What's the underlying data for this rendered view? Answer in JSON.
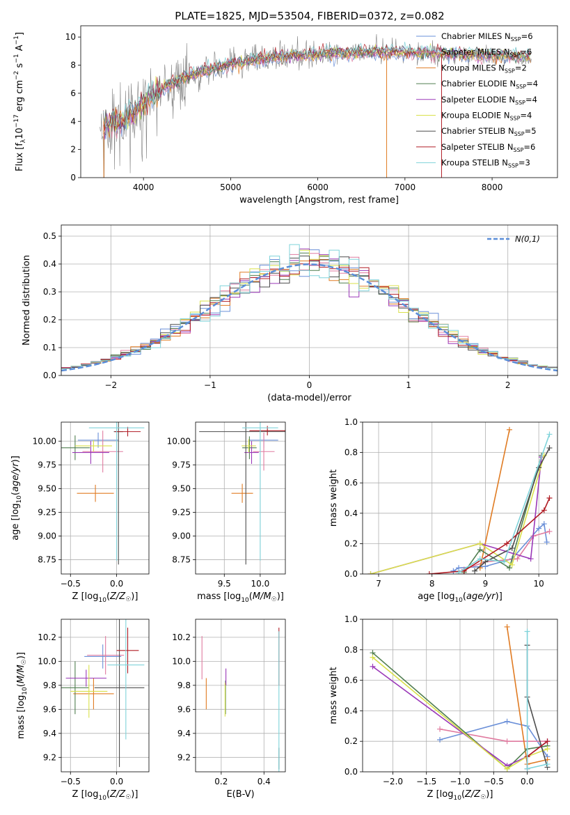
{
  "figure": {
    "title": "PLATE=1825, MJD=53504, FIBERID=0372, z=0.082"
  },
  "colors": {
    "data": "#808080",
    "Chabrier MILES": "#6a8fd8",
    "Salpeter MILES": "#e07a9f",
    "Kroupa MILES": "#e07b22",
    "Chabrier ELODIE": "#4f7d4f",
    "Salpeter ELODIE": "#9a38b8",
    "Kroupa ELODIE": "#d9e04a",
    "Chabrier STELIB": "#4d4d4d",
    "Salpeter STELIB": "#b01c24",
    "Kroupa STELIB": "#7fd3da",
    "gaussian": "#5b8ed8"
  },
  "chart_data": [
    {
      "id": "spectrum",
      "type": "line",
      "title": "PLATE=1825, MJD=53504, FIBERID=0372, z=0.082",
      "xlabel": "wavelength [Angstrom, rest frame]",
      "ylabel": "Flux [f_λ 10^-17 erg cm^-2 s^-1 A^-1]",
      "xlim": [
        3280,
        8750
      ],
      "ylim": [
        0,
        10.8
      ],
      "xticks": [
        4000,
        5000,
        6000,
        7000,
        8000
      ],
      "yticks": [
        0,
        2,
        4,
        6,
        8,
        10
      ],
      "grid": false,
      "legend_position": "right",
      "continuum_x": [
        3500,
        3600,
        3700,
        3800,
        3900,
        4000,
        4100,
        4200,
        4300,
        4400,
        4500,
        4700,
        5000,
        5300,
        5600,
        6000,
        6500,
        7000,
        7500,
        8000,
        8400
      ],
      "continuum_y": [
        4.0,
        3.8,
        3.9,
        4.2,
        4.6,
        5.3,
        5.9,
        6.3,
        6.6,
        6.9,
        7.2,
        7.6,
        8.1,
        8.4,
        8.6,
        8.8,
        8.9,
        8.9,
        8.8,
        8.7,
        8.6
      ],
      "series": [
        {
          "name": "Chabrier MILES",
          "nssp": 6
        },
        {
          "name": "Salpeter MILES",
          "nssp": 6
        },
        {
          "name": "Kroupa MILES",
          "nssp": 2
        },
        {
          "name": "Chabrier ELODIE",
          "nssp": 4
        },
        {
          "name": "Salpeter ELODIE",
          "nssp": 4
        },
        {
          "name": "Kroupa ELODIE",
          "nssp": 4
        },
        {
          "name": "Chabrier STELIB",
          "nssp": 5
        },
        {
          "name": "Salpeter STELIB",
          "nssp": 6
        },
        {
          "name": "Kroupa STELIB",
          "nssp": 3
        }
      ]
    },
    {
      "id": "residuals",
      "type": "step",
      "xlabel": "(data-model)/error",
      "ylabel": "Normed distribution",
      "xlim": [
        -2.5,
        2.5
      ],
      "ylim": [
        0,
        0.54
      ],
      "xticks": [
        -2,
        -1,
        0,
        1,
        2
      ],
      "yticks": [
        0.0,
        0.1,
        0.2,
        0.3,
        0.4,
        0.5
      ],
      "grid": true,
      "legend_position": "top-right",
      "legend_label": "N(0,1)",
      "bin_width": 0.1
    },
    {
      "id": "age_vs_Z",
      "type": "errorbar",
      "xlabel": "Z [log10(Z/Z☉)]",
      "ylabel": "age  [log10(age/yr)]",
      "xlim": [
        -0.6,
        0.35
      ],
      "ylim": [
        8.6,
        10.2
      ],
      "xticks": [
        -0.5,
        0.0
      ],
      "yticks": [
        8.75,
        9.0,
        9.25,
        9.5,
        9.75,
        10.0
      ],
      "grid": true,
      "points": [
        {
          "series": "Chabrier MILES",
          "x": -0.2,
          "xerr": 0.22,
          "y": 10.01,
          "yerr": 0.08
        },
        {
          "series": "Salpeter MILES",
          "x": -0.15,
          "xerr": 0.22,
          "y": 9.89,
          "yerr": 0.22
        },
        {
          "series": "Kroupa MILES",
          "x": -0.23,
          "xerr": 0.2,
          "y": 9.45,
          "yerr": 0.09
        },
        {
          "series": "Chabrier ELODIE",
          "x": -0.45,
          "xerr": 0.16,
          "y": 9.93,
          "yerr": 0.13
        },
        {
          "series": "Salpeter ELODIE",
          "x": -0.28,
          "xerr": 0.2,
          "y": 9.88,
          "yerr": 0.12
        },
        {
          "series": "Kroupa ELODIE",
          "x": -0.25,
          "xerr": 0.2,
          "y": 9.95,
          "yerr": 0.06
        },
        {
          "series": "Chabrier STELIB",
          "x": 0.02,
          "xerr": 0.05,
          "y": 10.1,
          "yerr": 1.4
        },
        {
          "series": "Salpeter STELIB",
          "x": 0.12,
          "xerr": 0.14,
          "y": 10.1,
          "yerr": 0.05
        },
        {
          "series": "Kroupa STELIB",
          "x": 0.0,
          "xerr": 0.3,
          "y": 10.14,
          "yerr": 1.4
        }
      ]
    },
    {
      "id": "age_vs_mass",
      "type": "errorbar",
      "xlabel": "mass [log10(M/M☉)]",
      "ylabel": "",
      "xlim": [
        9.1,
        10.35
      ],
      "ylim": [
        8.6,
        10.2
      ],
      "xticks": [
        9.5,
        10.0
      ],
      "yticks": [
        8.75,
        9.0,
        9.25,
        9.5,
        9.75,
        10.0
      ],
      "grid": true,
      "points": [
        {
          "series": "Chabrier MILES",
          "x": 10.05,
          "xerr": 0.2,
          "y": 10.01,
          "yerr": 0.08
        },
        {
          "series": "Salpeter MILES",
          "x": 10.05,
          "xerr": 0.15,
          "y": 9.89,
          "yerr": 0.2
        },
        {
          "series": "Kroupa MILES",
          "x": 9.75,
          "xerr": 0.15,
          "y": 9.45,
          "yerr": 0.1
        },
        {
          "series": "Chabrier ELODIE",
          "x": 9.85,
          "xerr": 0.1,
          "y": 9.93,
          "yerr": 0.12
        },
        {
          "series": "Salpeter ELODIE",
          "x": 9.88,
          "xerr": 0.1,
          "y": 9.88,
          "yerr": 0.12
        },
        {
          "series": "Kroupa ELODIE",
          "x": 9.84,
          "xerr": 0.1,
          "y": 9.95,
          "yerr": 0.07
        },
        {
          "series": "Chabrier STELIB",
          "x": 9.8,
          "xerr": 0.65,
          "y": 10.1,
          "yerr": 1.4
        },
        {
          "series": "Salpeter STELIB",
          "x": 10.1,
          "xerr": 0.25,
          "y": 10.11,
          "yerr": 0.05
        },
        {
          "series": "Kroupa STELIB",
          "x": 10.0,
          "xerr": 0.25,
          "y": 10.14,
          "yerr": 1.4
        }
      ]
    },
    {
      "id": "mass_weight_vs_age",
      "type": "line",
      "xlabel": "age  [log10(age/yr)]",
      "ylabel": "mass weight",
      "xlim": [
        6.7,
        10.35
      ],
      "ylim": [
        0,
        1.0
      ],
      "xticks": [
        7,
        8,
        9,
        10
      ],
      "yticks": [
        0.0,
        0.2,
        0.4,
        0.6,
        0.8,
        1.0
      ],
      "grid": true,
      "series": [
        {
          "name": "Chabrier MILES",
          "x": [
            8.4,
            8.5,
            9.0,
            9.5,
            10.0,
            10.1,
            10.15
          ],
          "y": [
            0.02,
            0.04,
            0.05,
            0.1,
            0.3,
            0.33,
            0.21
          ]
        },
        {
          "name": "Salpeter MILES",
          "x": [
            8.6,
            9.0,
            9.6,
            9.9,
            10.2
          ],
          "y": [
            0.03,
            0.08,
            0.1,
            0.25,
            0.28
          ]
        },
        {
          "name": "Kroupa MILES",
          "x": [
            8.9,
            9.45
          ],
          "y": [
            0.04,
            0.95
          ]
        },
        {
          "name": "Chabrier ELODIE",
          "x": [
            8.6,
            8.9,
            9.45,
            10.05
          ],
          "y": [
            0.01,
            0.16,
            0.04,
            0.78
          ]
        },
        {
          "name": "Salpeter ELODIE",
          "x": [
            6.85,
            8.9,
            9.85,
            10.05
          ],
          "y": [
            0.0,
            0.2,
            0.1,
            0.77
          ]
        },
        {
          "name": "Kroupa ELODIE",
          "x": [
            6.85,
            8.9,
            9.5,
            10.1
          ],
          "y": [
            0.0,
            0.2,
            0.06,
            0.78
          ]
        },
        {
          "name": "Chabrier STELIB",
          "x": [
            8.8,
            9.0,
            9.5,
            10.0,
            10.2
          ],
          "y": [
            0.02,
            0.08,
            0.17,
            0.7,
            0.83
          ]
        },
        {
          "name": "Salpeter STELIB",
          "x": [
            7.95,
            8.6,
            9.4,
            10.1,
            10.2
          ],
          "y": [
            0.0,
            0.02,
            0.2,
            0.42,
            0.5
          ]
        },
        {
          "name": "Kroupa STELIB",
          "x": [
            8.5,
            8.9,
            9.35,
            10.2
          ],
          "y": [
            0.01,
            0.1,
            0.08,
            0.92
          ]
        }
      ]
    },
    {
      "id": "mass_vs_Z",
      "type": "errorbar",
      "xlabel": "Z [log10(Z/Z☉)]",
      "ylabel": "mass [log10(M/M☉)]",
      "xlim": [
        -0.6,
        0.35
      ],
      "ylim": [
        9.08,
        10.35
      ],
      "xticks": [
        -0.5,
        0.0
      ],
      "yticks": [
        9.2,
        9.4,
        9.6,
        9.8,
        10.0,
        10.2
      ],
      "grid": true,
      "points": [
        {
          "series": "Chabrier MILES",
          "x": -0.15,
          "xerr": 0.2,
          "y": 10.04,
          "yerr": 0.1
        },
        {
          "series": "Salpeter MILES",
          "x": -0.12,
          "xerr": 0.2,
          "y": 10.05,
          "yerr": 0.16
        },
        {
          "series": "Kroupa MILES",
          "x": -0.25,
          "xerr": 0.22,
          "y": 9.73,
          "yerr": 0.13
        },
        {
          "series": "Chabrier ELODIE",
          "x": -0.45,
          "xerr": 0.15,
          "y": 9.78,
          "yerr": 0.22
        },
        {
          "series": "Salpeter ELODIE",
          "x": -0.33,
          "xerr": 0.22,
          "y": 9.86,
          "yerr": 0.07
        },
        {
          "series": "Kroupa ELODIE",
          "x": -0.3,
          "xerr": 0.2,
          "y": 9.75,
          "yerr": 0.22
        },
        {
          "series": "Chabrier STELIB",
          "x": 0.03,
          "xerr": 0.27,
          "y": 9.78,
          "yerr": 0.66
        },
        {
          "series": "Salpeter STELIB",
          "x": 0.12,
          "xerr": 0.12,
          "y": 10.09,
          "yerr": 0.19
        },
        {
          "series": "Kroupa STELIB",
          "x": 0.1,
          "xerr": 0.2,
          "y": 9.97,
          "yerr": 0.62
        }
      ]
    },
    {
      "id": "mass_vs_ebv",
      "type": "errorbar",
      "xlabel": "E(B-V)",
      "ylabel": "",
      "xlim": [
        0.08,
        0.5
      ],
      "ylim": [
        9.08,
        10.35
      ],
      "xticks": [
        0.2,
        0.4
      ],
      "yticks": [
        9.2,
        9.4,
        9.6,
        9.8,
        10.0,
        10.2
      ],
      "grid": true,
      "points": [
        {
          "series": "Salpeter MILES",
          "x": 0.11,
          "y": 10.03,
          "yerr": 0.18
        },
        {
          "series": "Kroupa MILES",
          "x": 0.13,
          "y": 9.73,
          "yerr": 0.13
        },
        {
          "series": "Chabrier ELODIE",
          "x": 0.22,
          "y": 9.7,
          "yerr": 0.14
        },
        {
          "series": "Salpeter ELODIE",
          "x": 0.222,
          "y": 9.87,
          "yerr": 0.07
        },
        {
          "series": "Kroupa ELODIE",
          "x": 0.218,
          "y": 9.68,
          "yerr": 0.14
        },
        {
          "series": "Chabrier STELIB",
          "x": 0.47,
          "y": 9.19,
          "yerr": 0.09
        },
        {
          "series": "Salpeter STELIB",
          "x": 0.47,
          "y": 10.04,
          "yerr": 0.24
        },
        {
          "series": "Kroupa STELIB",
          "x": 0.47,
          "y": 9.6,
          "yerr": 0.65
        }
      ]
    },
    {
      "id": "mass_weight_vs_Z",
      "type": "line",
      "xlabel": "Z [log10(Z/Z☉)]",
      "ylabel": "mass weight",
      "xlim": [
        -2.45,
        0.45
      ],
      "ylim": [
        0,
        1.0
      ],
      "xticks": [
        -2.0,
        -1.5,
        -1.0,
        -0.5,
        0.0
      ],
      "yticks": [
        0.0,
        0.2,
        0.4,
        0.6,
        0.8,
        1.0
      ],
      "grid": true,
      "series": [
        {
          "name": "Chabrier MILES",
          "x": [
            -1.3,
            -0.3,
            0.0,
            0.3
          ],
          "y": [
            0.21,
            0.33,
            0.3,
            0.1
          ]
        },
        {
          "name": "Salpeter MILES",
          "x": [
            -1.3,
            -0.3,
            0.0,
            0.3
          ],
          "y": [
            0.28,
            0.2,
            0.2,
            0.2
          ]
        },
        {
          "name": "Kroupa MILES",
          "x": [
            -0.3,
            0.0,
            0.3
          ],
          "y": [
            0.95,
            0.05,
            0.08
          ]
        },
        {
          "name": "Chabrier ELODIE",
          "x": [
            -2.3,
            -0.3,
            0.0,
            0.3
          ],
          "y": [
            0.78,
            0.02,
            0.15,
            0.17
          ]
        },
        {
          "name": "Salpeter ELODIE",
          "x": [
            -2.3,
            -0.3,
            0.0,
            0.3
          ],
          "y": [
            0.69,
            0.04,
            0.1,
            0.2
          ]
        },
        {
          "name": "Kroupa ELODIE",
          "x": [
            -2.3,
            -0.3,
            0.0,
            0.3
          ],
          "y": [
            0.75,
            0.02,
            0.1,
            0.15
          ]
        },
        {
          "name": "Chabrier STELIB",
          "x": [
            0.0,
            0.0,
            0.3
          ],
          "y": [
            0.83,
            0.49,
            0.03
          ]
        },
        {
          "name": "Salpeter STELIB",
          "x": [
            0.0,
            0.0,
            0.3
          ],
          "y": [
            0.02,
            0.1,
            0.2
          ]
        },
        {
          "name": "Kroupa STELIB",
          "x": [
            0.0,
            0.0,
            0.3
          ],
          "y": [
            0.92,
            0.02,
            0.05
          ]
        }
      ]
    }
  ]
}
